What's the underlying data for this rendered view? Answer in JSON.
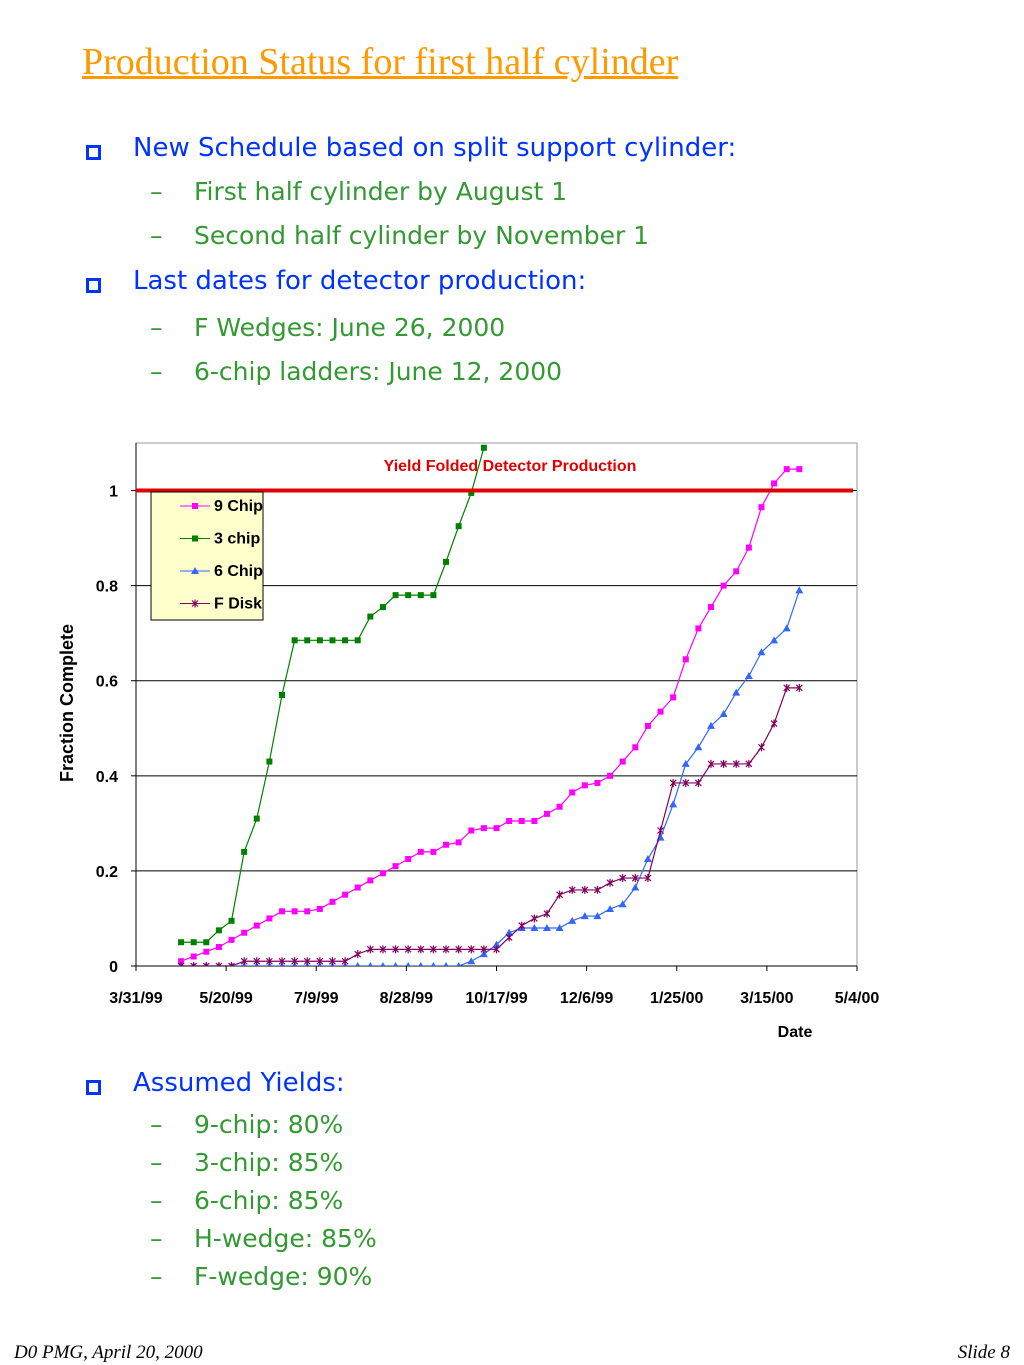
{
  "header": {
    "title": "Production Status for first half cylinder"
  },
  "bullets": [
    {
      "text": "New Schedule based on split support cylinder:",
      "items": [
        "First half cylinder by August 1",
        "Second half cylinder by November 1"
      ]
    },
    {
      "text": "Last dates for detector production:",
      "items": [
        "F Wedges: June 26, 2000",
        "6-chip ladders: June 12, 2000"
      ]
    }
  ],
  "bullets_after": [
    {
      "text": "Assumed Yields:",
      "items": [
        "9-chip: 80%",
        "3-chip: 85%",
        "6-chip: 85%",
        "H-wedge: 85%",
        "F-wedge: 90%"
      ]
    }
  ],
  "footer": {
    "left": "D0 PMG, April 20, 2000",
    "right": "Slide 8"
  },
  "chart_data": {
    "type": "line",
    "x_label": "Date",
    "y_label": "Fraction Complete",
    "reference_line": {
      "value": 1,
      "label": "Yield Folded Detector Production",
      "color": "#e00000"
    },
    "xlim": [
      "3/31/99",
      "5/4/00"
    ],
    "xticks": [
      "3/31/99",
      "5/20/99",
      "7/9/99",
      "8/28/99",
      "10/17/99",
      "12/6/99",
      "1/25/00",
      "3/15/00",
      "5/4/00"
    ],
    "ylim": [
      0,
      1.1
    ],
    "yticks": [
      0,
      0.2,
      0.4,
      0.6,
      0.8,
      1
    ],
    "grid": true,
    "x": [
      "4/25/99",
      "5/2/99",
      "5/9/99",
      "5/16/99",
      "5/23/99",
      "5/30/99",
      "6/6/99",
      "6/13/99",
      "6/20/99",
      "6/27/99",
      "7/4/99",
      "7/11/99",
      "7/18/99",
      "7/25/99",
      "8/1/99",
      "8/8/99",
      "8/15/99",
      "8/22/99",
      "8/29/99",
      "9/5/99",
      "9/12/99",
      "9/19/99",
      "9/26/99",
      "10/3/99",
      "10/10/99",
      "10/17/99",
      "10/24/99",
      "10/31/99",
      "11/7/99",
      "11/14/99",
      "11/21/99",
      "11/28/99",
      "12/5/99",
      "12/12/99",
      "12/19/99",
      "12/26/99",
      "1/2/00",
      "1/9/00",
      "1/16/00",
      "1/23/00",
      "1/30/00",
      "2/6/00",
      "2/13/00",
      "2/20/00",
      "2/27/00",
      "3/5/00",
      "3/12/00",
      "3/19/00",
      "3/26/00",
      "4/2/00"
    ],
    "series": [
      {
        "name": "9 Chip",
        "color": "#ff00ff",
        "marker": "square",
        "values": [
          0.01,
          0.02,
          0.03,
          0.04,
          0.055,
          0.07,
          0.085,
          0.1,
          0.115,
          0.115,
          0.115,
          0.12,
          0.135,
          0.15,
          0.165,
          0.18,
          0.195,
          0.21,
          0.225,
          0.24,
          0.24,
          0.255,
          0.26,
          0.285,
          0.29,
          0.29,
          0.305,
          0.305,
          0.305,
          0.32,
          0.335,
          0.365,
          0.38,
          0.385,
          0.4,
          0.43,
          0.46,
          0.505,
          0.535,
          0.565,
          0.645,
          0.71,
          0.755,
          0.8,
          0.83,
          0.88,
          0.965,
          1.015,
          1.045,
          1.045
        ]
      },
      {
        "name": "3 chip",
        "color": "#008000",
        "marker": "square",
        "values": [
          0.05,
          0.05,
          0.05,
          0.075,
          0.095,
          0.24,
          0.31,
          0.43,
          0.57,
          0.685,
          0.685,
          0.685,
          0.685,
          0.685,
          0.685,
          0.735,
          0.755,
          0.78,
          0.78,
          0.78,
          0.78,
          0.85,
          0.925,
          0.995,
          1.09,
          null,
          null,
          null,
          null,
          null,
          null,
          null,
          null,
          null,
          null,
          null,
          null,
          null,
          null,
          null,
          null,
          null,
          null,
          null,
          null,
          null,
          null,
          null,
          null,
          null
        ]
      },
      {
        "name": "6 Chip",
        "color": "#3366ff",
        "marker": "triangle",
        "values": [
          0,
          0,
          0,
          0,
          0,
          0,
          0,
          0,
          0,
          0,
          0,
          0,
          0,
          0,
          0,
          0,
          0,
          0,
          0,
          0,
          0,
          0,
          0,
          0.01,
          0.025,
          0.045,
          0.07,
          0.08,
          0.08,
          0.08,
          0.08,
          0.095,
          0.105,
          0.105,
          0.12,
          0.13,
          0.165,
          0.225,
          0.27,
          0.34,
          0.425,
          0.46,
          0.505,
          0.53,
          0.575,
          0.61,
          0.66,
          0.685,
          0.71,
          0.79
        ]
      },
      {
        "name": "F Disk",
        "color": "#800060",
        "marker": "star",
        "values": [
          0,
          0,
          0,
          0,
          0,
          0.01,
          0.01,
          0.01,
          0.01,
          0.01,
          0.01,
          0.01,
          0.01,
          0.01,
          0.025,
          0.035,
          0.035,
          0.035,
          0.035,
          0.035,
          0.035,
          0.035,
          0.035,
          0.035,
          0.035,
          0.035,
          0.06,
          0.085,
          0.1,
          0.11,
          0.15,
          0.16,
          0.16,
          0.16,
          0.175,
          0.185,
          0.185,
          0.185,
          0.285,
          0.385,
          0.385,
          0.385,
          0.425,
          0.425,
          0.425,
          0.425,
          0.46,
          0.51,
          0.585,
          0.585
        ]
      }
    ]
  }
}
